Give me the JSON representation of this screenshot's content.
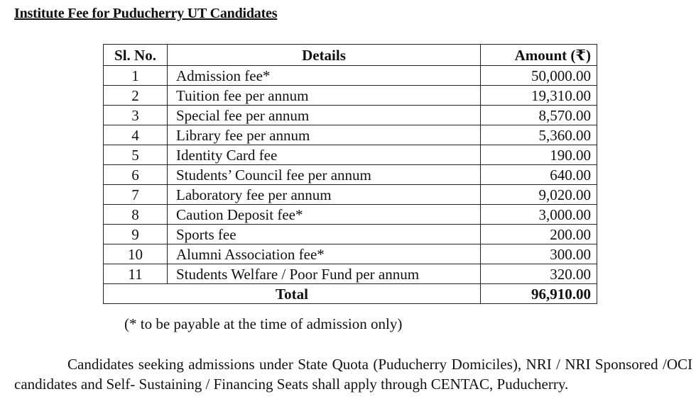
{
  "title": "Institute Fee for Puducherry UT Candidates",
  "table": {
    "headers": [
      "Sl. No.",
      "Details",
      "Amount (₹)"
    ],
    "rows": [
      {
        "sl": "1",
        "details": "Admission fee*",
        "amount": "50,000.00"
      },
      {
        "sl": "2",
        "details": "Tuition fee per annum",
        "amount": "19,310.00"
      },
      {
        "sl": "3",
        "details": "Special fee per annum",
        "amount": "8,570.00"
      },
      {
        "sl": "4",
        "details": "Library fee per annum",
        "amount": "5,360.00"
      },
      {
        "sl": "5",
        "details": "Identity Card fee",
        "amount": "190.00"
      },
      {
        "sl": "6",
        "details": "Students’ Council fee per annum",
        "amount": "640.00"
      },
      {
        "sl": "7",
        "details": "Laboratory fee per annum",
        "amount": "9,020.00"
      },
      {
        "sl": "8",
        "details": "Caution Deposit fee*",
        "amount": "3,000.00"
      },
      {
        "sl": "9",
        "details": "Sports fee",
        "amount": "200.00"
      },
      {
        "sl": "10",
        "details": "Alumni Association fee*",
        "amount": "300.00"
      },
      {
        "sl": "11",
        "details": "Students Welfare / Poor Fund per annum",
        "amount": "320.00"
      }
    ],
    "total_label": "Total",
    "total_amount": "96,910.00"
  },
  "footnote": "(* to be payable at the time of admission only)",
  "paragraph": "Candidates seeking admissions under State Quota (Puducherry Domiciles), NRI / NRI Sponsored /OCI candidates and Self- Sustaining / Financing Seats shall apply through CENTAC, Puducherry."
}
